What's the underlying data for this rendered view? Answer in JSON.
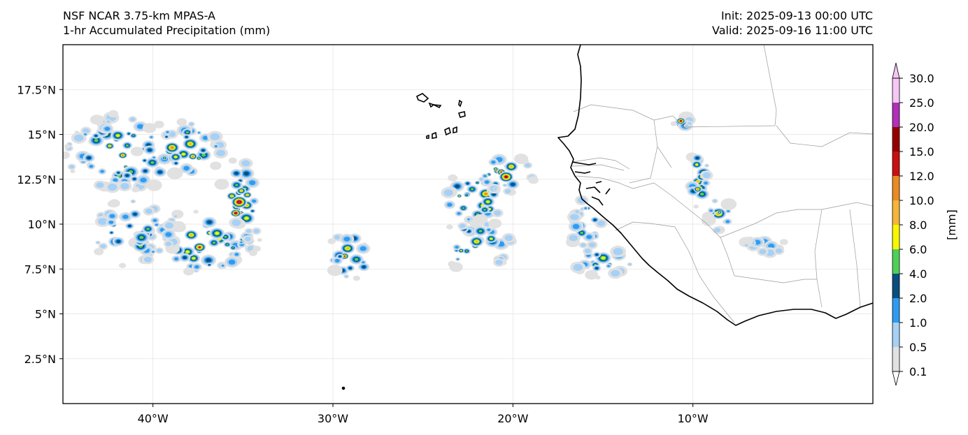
{
  "header": {
    "model": "NSF NCAR 3.75-km MPAS-A",
    "field": "1-hr Accumulated Precipitation (mm)",
    "init": "Init: 2025-09-13 00:00 UTC",
    "valid": "Valid: 2025-09-16 11:00 UTC"
  },
  "map": {
    "lon_range": [
      -45,
      0
    ],
    "lat_range": [
      0,
      20
    ],
    "lon_ticks": [
      {
        "value": -40,
        "label": "40°W"
      },
      {
        "value": -30,
        "label": "30°W"
      },
      {
        "value": -20,
        "label": "20°W"
      },
      {
        "value": -10,
        "label": "10°W"
      }
    ],
    "lat_ticks": [
      {
        "value": 2.5,
        "label": "2.5°N"
      },
      {
        "value": 5,
        "label": "5°N"
      },
      {
        "value": 7.5,
        "label": "7.5°N"
      },
      {
        "value": 10,
        "label": "10°N"
      },
      {
        "value": 12.5,
        "label": "12.5°N"
      },
      {
        "value": 15,
        "label": "15°N"
      },
      {
        "value": 17.5,
        "label": "17.5°N"
      }
    ],
    "gridlines": true,
    "coastline_color": "#000000",
    "border_color": "#9a9a9a"
  },
  "colorbar": {
    "label": "[mm]",
    "levels": [
      "0.1",
      "0.5",
      "1.0",
      "2.0",
      "4.0",
      "6.0",
      "8.0",
      "10.0",
      "12.0",
      "15.0",
      "20.0",
      "25.0",
      "30.0"
    ],
    "colors": [
      "#e1e1e1",
      "#a6d1f7",
      "#2e9bf0",
      "#0a4e7e",
      "#4fcf5a",
      "#f7f700",
      "#f5b53a",
      "#ea8a25",
      "#c81010",
      "#960000",
      "#b030b8",
      "#f6c6f5"
    ]
  },
  "precip_regions": [
    {
      "lon": -41.5,
      "lat": 14.0,
      "rlon": 3.5,
      "rlat": 2.2,
      "max": 9
    },
    {
      "lon": -38.5,
      "lat": 14.2,
      "rlon": 2.5,
      "rlat": 1.6,
      "max": 10
    },
    {
      "lon": -35.2,
      "lat": 10.8,
      "rlon": 1.2,
      "rlat": 3.0,
      "max": 11
    },
    {
      "lon": -37.5,
      "lat": 9.0,
      "rlon": 3.5,
      "rlat": 1.8,
      "max": 9
    },
    {
      "lon": -41.0,
      "lat": 9.5,
      "rlon": 2.5,
      "rlat": 2.0,
      "max": 7
    },
    {
      "lon": -29.0,
      "lat": 8.3,
      "rlon": 1.3,
      "rlat": 1.4,
      "max": 10
    },
    {
      "lon": -22.0,
      "lat": 11.5,
      "rlon": 2.0,
      "rlat": 1.5,
      "max": 11
    },
    {
      "lon": -20.5,
      "lat": 12.8,
      "rlon": 1.8,
      "rlat": 1.0,
      "max": 10
    },
    {
      "lon": -22.0,
      "lat": 8.8,
      "rlon": 2.2,
      "rlat": 1.5,
      "max": 8
    },
    {
      "lon": -16.0,
      "lat": 10.0,
      "rlon": 1.0,
      "rlat": 1.5,
      "max": 6
    },
    {
      "lon": -15.0,
      "lat": 8.0,
      "rlon": 1.8,
      "rlat": 1.0,
      "max": 6
    },
    {
      "lon": -10.6,
      "lat": 15.7,
      "rlon": 0.5,
      "rlat": 0.3,
      "max": 11
    },
    {
      "lon": -9.7,
      "lat": 12.5,
      "rlon": 0.6,
      "rlat": 1.6,
      "max": 11
    },
    {
      "lon": -8.5,
      "lat": 10.5,
      "rlon": 0.7,
      "rlat": 1.0,
      "max": 9
    },
    {
      "lon": -6.0,
      "lat": 8.8,
      "rlon": 1.2,
      "rlat": 0.5,
      "max": 4
    }
  ]
}
